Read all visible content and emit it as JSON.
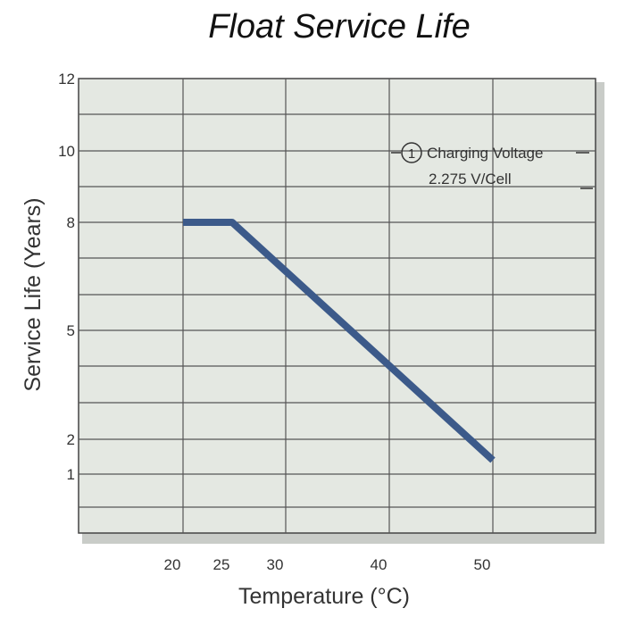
{
  "chart_data": {
    "type": "line",
    "title": "Float Service Life",
    "xlabel": "Temperature (°C)",
    "ylabel": "Service Life (Years)",
    "xlim": [
      15,
      55
    ],
    "x_ticks": [
      20,
      25,
      30,
      40,
      50
    ],
    "y_ticks": [
      1,
      2,
      5,
      8,
      10,
      12
    ],
    "grid": true,
    "series": [
      {
        "x": [
          20,
          25,
          50
        ],
        "y": [
          8,
          8,
          1.4
        ]
      }
    ],
    "annotation": {
      "marker": "1",
      "line1": "Charging Voltage",
      "line2": "2.275 V/Cell"
    },
    "colors": {
      "plot_background": "#e4e8e2",
      "grid": "#555555",
      "series": "#3c5a8a"
    }
  }
}
